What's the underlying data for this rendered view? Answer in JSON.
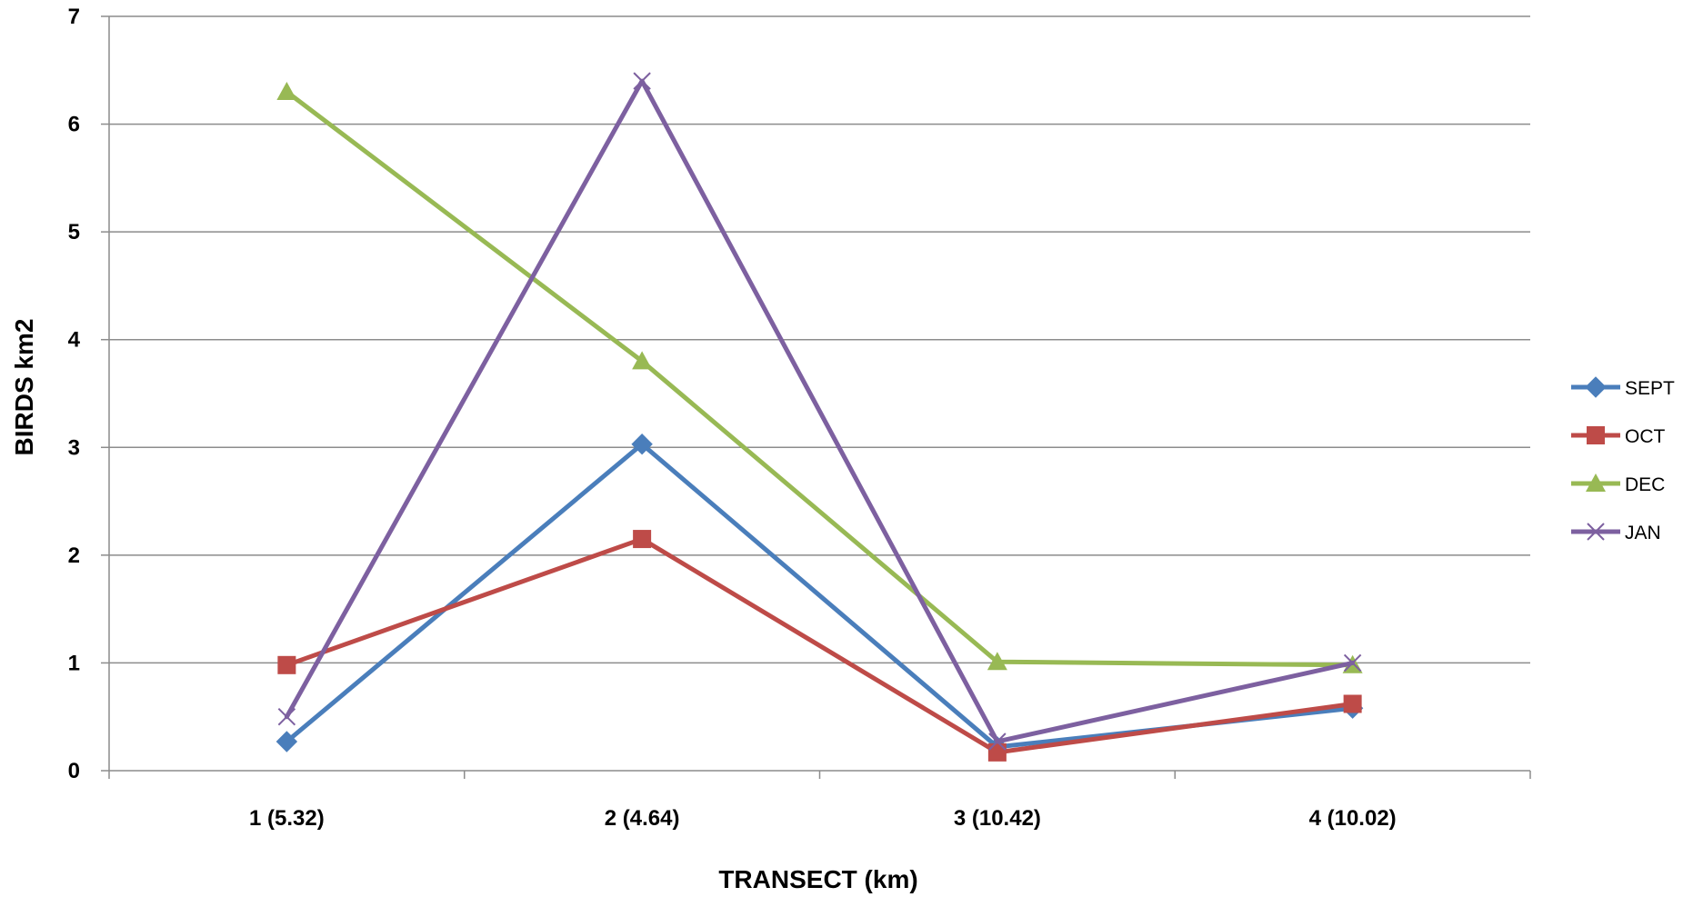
{
  "chart_data": {
    "type": "line",
    "title": "",
    "xlabel": "TRANSECT (km)",
    "ylabel": "BIRDS km2",
    "categories": [
      "1 (5.32)",
      "2 (4.64)",
      "3 (10.42)",
      "4 (10.02)"
    ],
    "ylim": [
      0,
      7
    ],
    "yticks": [
      "0",
      "1",
      "2",
      "3",
      "4",
      "5",
      "6",
      "7"
    ],
    "grid": true,
    "legend_position": "right",
    "series": [
      {
        "name": "SEPT",
        "color": "#4a7ebb",
        "marker": "diamond",
        "values": [
          0.27,
          3.03,
          0.22,
          0.58
        ]
      },
      {
        "name": "OCT",
        "color": "#be4b48",
        "marker": "square",
        "values": [
          0.98,
          2.15,
          0.17,
          0.62
        ]
      },
      {
        "name": "DEC",
        "color": "#98b954",
        "marker": "triangle",
        "values": [
          6.3,
          3.8,
          1.01,
          0.98
        ]
      },
      {
        "name": "JAN",
        "color": "#7d60a0",
        "marker": "x",
        "values": [
          0.5,
          6.4,
          0.27,
          1.0
        ]
      }
    ]
  }
}
